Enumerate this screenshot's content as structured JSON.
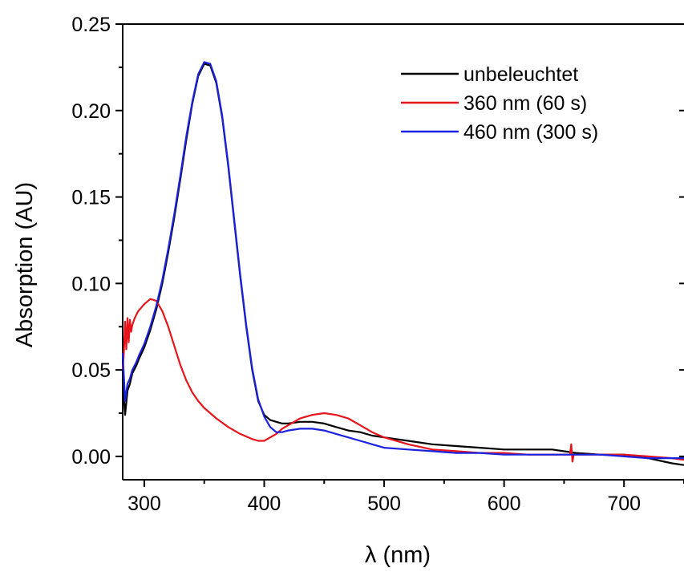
{
  "chart_data": {
    "type": "line",
    "title": "",
    "xlabel": "λ (nm)",
    "ylabel": "Absorption (AU)",
    "xlim": [
      282,
      750
    ],
    "ylim": [
      -0.0135,
      0.25
    ],
    "xticks": [
      300,
      400,
      500,
      600,
      700
    ],
    "xtick_labels": [
      "300",
      "400",
      "500",
      "600",
      "700"
    ],
    "yticks": [
      0.0,
      0.05,
      0.1,
      0.15,
      0.2,
      0.25
    ],
    "ytick_labels": [
      "0.00",
      "0.05",
      "0.10",
      "0.15",
      "0.20",
      "0.25"
    ],
    "grid": false,
    "legend_position": "top-right",
    "series": [
      {
        "name": "unbeleuchtet",
        "color": "#000000",
        "x": [
          282,
          284,
          286,
          288,
          290,
          293,
          296,
          300,
          305,
          310,
          315,
          320,
          325,
          330,
          335,
          340,
          345,
          350,
          355,
          360,
          365,
          370,
          375,
          380,
          385,
          390,
          395,
          400,
          405,
          410,
          415,
          420,
          430,
          440,
          450,
          460,
          470,
          480,
          490,
          500,
          520,
          540,
          560,
          580,
          600,
          620,
          640,
          660,
          680,
          700,
          720,
          740,
          750
        ],
        "y": [
          0.045,
          0.024,
          0.038,
          0.042,
          0.048,
          0.052,
          0.057,
          0.063,
          0.073,
          0.085,
          0.1,
          0.118,
          0.138,
          0.16,
          0.183,
          0.204,
          0.22,
          0.227,
          0.226,
          0.216,
          0.196,
          0.168,
          0.136,
          0.104,
          0.075,
          0.05,
          0.032,
          0.024,
          0.021,
          0.02,
          0.019,
          0.019,
          0.02,
          0.02,
          0.019,
          0.017,
          0.015,
          0.014,
          0.012,
          0.011,
          0.009,
          0.007,
          0.006,
          0.005,
          0.004,
          0.004,
          0.004,
          0.002,
          0.001,
          0.001,
          -0.001,
          -0.004,
          -0.005
        ]
      },
      {
        "name": "360 nm (60 s)",
        "color": "#e8141b",
        "x": [
          282,
          283,
          284,
          285,
          286,
          287,
          288,
          289,
          290,
          292,
          295,
          300,
          305,
          310,
          315,
          320,
          325,
          330,
          335,
          340,
          345,
          350,
          360,
          370,
          380,
          390,
          395,
          400,
          405,
          410,
          415,
          420,
          425,
          430,
          440,
          450,
          460,
          470,
          480,
          490,
          500,
          520,
          540,
          560,
          580,
          600,
          620,
          640,
          655,
          656,
          657,
          658,
          660,
          680,
          700,
          720,
          740,
          750
        ],
        "y": [
          0.05,
          0.06,
          0.078,
          0.062,
          0.08,
          0.066,
          0.079,
          0.072,
          0.076,
          0.08,
          0.084,
          0.088,
          0.091,
          0.09,
          0.084,
          0.075,
          0.064,
          0.053,
          0.044,
          0.037,
          0.032,
          0.028,
          0.022,
          0.017,
          0.013,
          0.01,
          0.009,
          0.009,
          0.011,
          0.013,
          0.016,
          0.018,
          0.02,
          0.022,
          0.024,
          0.025,
          0.024,
          0.022,
          0.018,
          0.014,
          0.011,
          0.007,
          0.004,
          0.003,
          0.002,
          0.002,
          0.001,
          0.001,
          0.001,
          0.007,
          -0.003,
          0.001,
          0.001,
          0.001,
          0.001,
          0.0,
          -0.001,
          -0.002
        ]
      },
      {
        "name": "460 nm (300 s)",
        "color": "#1a22e0",
        "x": [
          282,
          284,
          286,
          288,
          290,
          293,
          296,
          300,
          305,
          310,
          315,
          320,
          325,
          330,
          335,
          340,
          345,
          350,
          355,
          360,
          365,
          370,
          375,
          380,
          385,
          390,
          395,
          400,
          405,
          410,
          415,
          420,
          430,
          440,
          450,
          460,
          470,
          480,
          490,
          500,
          520,
          540,
          560,
          580,
          600,
          620,
          640,
          660,
          680,
          700,
          720,
          740,
          750
        ],
        "y": [
          0.06,
          0.032,
          0.042,
          0.045,
          0.05,
          0.054,
          0.059,
          0.065,
          0.075,
          0.087,
          0.102,
          0.12,
          0.14,
          0.162,
          0.185,
          0.205,
          0.221,
          0.228,
          0.227,
          0.217,
          0.197,
          0.169,
          0.137,
          0.105,
          0.076,
          0.051,
          0.033,
          0.023,
          0.017,
          0.014,
          0.014,
          0.015,
          0.016,
          0.016,
          0.015,
          0.013,
          0.011,
          0.009,
          0.007,
          0.005,
          0.004,
          0.003,
          0.002,
          0.002,
          0.001,
          0.001,
          0.001,
          0.001,
          0.001,
          0.0,
          -0.001,
          -0.001,
          -0.001
        ]
      }
    ]
  }
}
